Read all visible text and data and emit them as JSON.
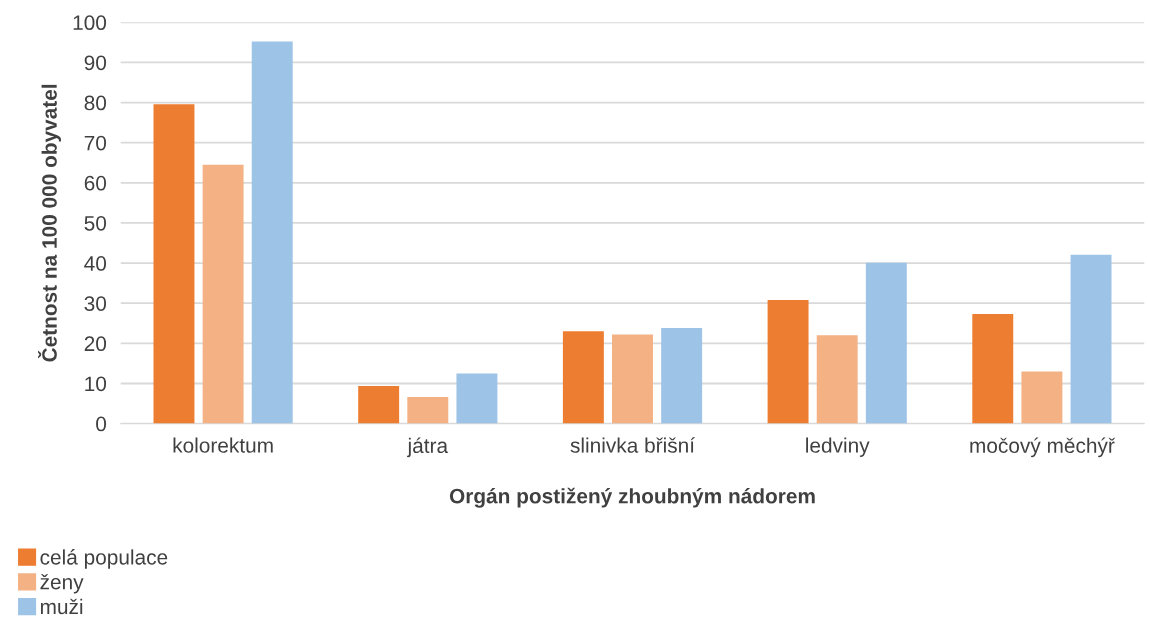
{
  "chart_data": {
    "type": "bar",
    "xlabel": "Orgán postižený zhoubným nádorem",
    "ylabel": "Četnost na 100 000 obyvatel",
    "categories": [
      "kolorektum",
      "játra",
      "slinivka břišní",
      "ledviny",
      "močový měchýř"
    ],
    "series": [
      {
        "name": "celá populace",
        "color": "#ed7d31",
        "values": [
          79.6,
          9.4,
          23,
          30.8,
          27.3
        ]
      },
      {
        "name": "ženy",
        "color": "#f4b183",
        "values": [
          64.5,
          6.6,
          22.2,
          22,
          13
        ]
      },
      {
        "name": "muži",
        "color": "#9dc3e6",
        "values": [
          95.2,
          12.5,
          23.8,
          40.1,
          42.1
        ]
      }
    ],
    "ylim": [
      0,
      100
    ],
    "yticks": [
      0,
      10,
      20,
      30,
      40,
      50,
      60,
      70,
      80,
      90,
      100
    ],
    "grid": "y",
    "legend": "bottom left"
  }
}
